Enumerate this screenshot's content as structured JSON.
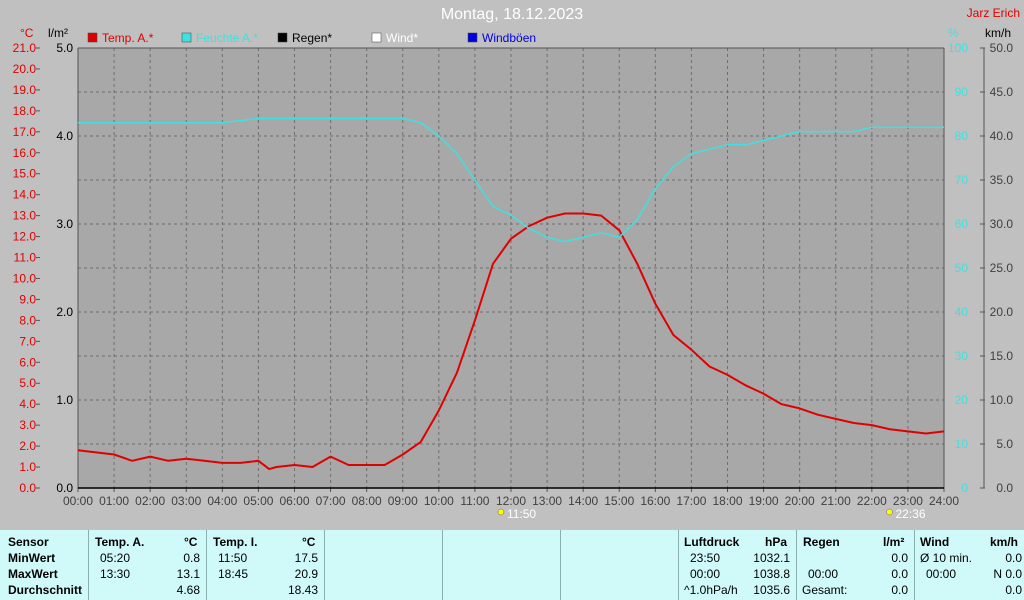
{
  "header": {
    "title": "Montag, 18.12.2023",
    "brand": "Jarz Erich"
  },
  "axes": {
    "left_temp_unit": "°C",
    "left_rain_unit": "l/m²",
    "right_hum_unit": "%",
    "right_wind_unit": "km/h"
  },
  "legend": [
    {
      "label": "Temp. A.*",
      "color": "#e00000"
    },
    {
      "label": "Feuchte A.*",
      "color": "#40e0e0"
    },
    {
      "label": "Regen*",
      "color": "#000000"
    },
    {
      "label": "Wind*",
      "color": "#ffffff"
    },
    {
      "label": "Windböen",
      "color": "#0000e0"
    }
  ],
  "markers": [
    {
      "label": "11:50",
      "hour": 11.833
    },
    {
      "label": "22:36",
      "hour": 22.6
    }
  ],
  "chart_data": {
    "type": "line",
    "title": "Montag, 18.12.2023",
    "x_ticks": [
      "00:00",
      "01:00",
      "02:00",
      "03:00",
      "04:00",
      "05:00",
      "06:00",
      "07:00",
      "08:00",
      "09:00",
      "10:00",
      "11:00",
      "12:00",
      "13:00",
      "14:00",
      "15:00",
      "16:00",
      "17:00",
      "18:00",
      "19:00",
      "20:00",
      "21:00",
      "22:00",
      "23:00",
      "24:00"
    ],
    "xlim": [
      0,
      24
    ],
    "y_temp_ticks": [
      "0.0",
      "1.0",
      "2.0",
      "3.0",
      "4.0",
      "5.0",
      "6.0",
      "7.0",
      "8.0",
      "9.0",
      "10.0",
      "11.0",
      "12.0",
      "13.0",
      "14.0",
      "15.0",
      "16.0",
      "17.0",
      "18.0",
      "19.0",
      "20.0",
      "21.0"
    ],
    "ylim_temp": [
      0,
      21
    ],
    "y_rain_ticks": [
      "0.0",
      "1.0",
      "2.0",
      "3.0",
      "4.0",
      "5.0"
    ],
    "ylim_rain": [
      0,
      5
    ],
    "y_hum_ticks": [
      "0",
      "10",
      "20",
      "30",
      "40",
      "50",
      "60",
      "70",
      "80",
      "90",
      "100"
    ],
    "ylim_hum": [
      0,
      100
    ],
    "y_wind_ticks": [
      "0.0",
      "5.0",
      "10.0",
      "15.0",
      "20.0",
      "25.0",
      "30.0",
      "35.0",
      "40.0",
      "45.0",
      "50.0"
    ],
    "ylim_wind": [
      0,
      50
    ],
    "grid": true,
    "series": [
      {
        "name": "Temp. A.*",
        "color": "#e00000",
        "axis": "temp",
        "x": [
          0,
          0.5,
          1,
          1.5,
          2,
          2.5,
          3,
          3.5,
          4,
          4.5,
          5,
          5.3,
          5.5,
          6,
          6.5,
          7,
          7.5,
          8,
          8.5,
          9,
          9.5,
          10,
          10.5,
          11,
          11.5,
          12,
          12.5,
          13,
          13.5,
          14,
          14.5,
          15,
          15.5,
          16,
          16.5,
          17,
          17.5,
          18,
          18.5,
          19,
          19.5,
          20,
          20.5,
          21,
          21.5,
          22,
          22.5,
          23,
          23.5,
          24
        ],
        "y": [
          1.8,
          1.7,
          1.6,
          1.3,
          1.5,
          1.3,
          1.4,
          1.3,
          1.2,
          1.2,
          1.3,
          0.9,
          1.0,
          1.1,
          1.0,
          1.5,
          1.1,
          1.1,
          1.1,
          1.6,
          2.2,
          3.7,
          5.5,
          8.0,
          10.7,
          11.9,
          12.5,
          12.9,
          13.1,
          13.1,
          13.0,
          12.3,
          10.7,
          8.8,
          7.3,
          6.6,
          5.8,
          5.4,
          4.9,
          4.5,
          4.0,
          3.8,
          3.5,
          3.3,
          3.1,
          3.0,
          2.8,
          2.7,
          2.6,
          2.7
        ]
      },
      {
        "name": "Feuchte A.*",
        "color": "#40e0e0",
        "axis": "hum",
        "x": [
          0,
          1,
          2,
          3,
          4,
          5,
          6,
          7,
          8,
          9,
          9.5,
          10,
          10.5,
          11,
          11.5,
          12,
          12.5,
          13,
          13.5,
          14,
          14.5,
          15,
          15.5,
          16,
          16.5,
          17,
          17.5,
          18,
          18.5,
          19,
          19.5,
          20,
          20.5,
          21,
          21.5,
          22,
          22.5,
          23,
          23.5,
          24
        ],
        "y": [
          83,
          83,
          83,
          83,
          83,
          84,
          84,
          84,
          84,
          84,
          83,
          80,
          76,
          70,
          64,
          62,
          59,
          57,
          56,
          57,
          58,
          57,
          61,
          68,
          73,
          76,
          77,
          78,
          78,
          79,
          80,
          81,
          81,
          81,
          81,
          82,
          82,
          82,
          82,
          82
        ]
      },
      {
        "name": "Regen*",
        "color": "#000000",
        "axis": "rain",
        "x": [
          0,
          24
        ],
        "y": [
          0,
          0
        ]
      }
    ]
  },
  "stats": {
    "sensor_header": "Sensor",
    "row_labels": [
      "MinWert",
      "MaxWert",
      "Durchschnitt"
    ],
    "temp_a": {
      "header": "Temp. A.",
      "unit": "°C",
      "rows": [
        [
          "05:20",
          "0.8"
        ],
        [
          "13:30",
          "13.1"
        ],
        [
          "",
          "4.68"
        ]
      ]
    },
    "temp_i": {
      "header": "Temp. I.",
      "unit": "°C",
      "rows": [
        [
          "11:50",
          "17.5"
        ],
        [
          "18:45",
          "20.9"
        ],
        [
          "",
          "18.43"
        ]
      ]
    },
    "pressure": {
      "header": "Luftdruck",
      "unit": "hPa",
      "rows": [
        [
          "23:50",
          "1032.1"
        ],
        [
          "00:00",
          "1038.8"
        ],
        [
          "^1.0hPa/h",
          "1035.6"
        ]
      ]
    },
    "rain": {
      "header": "Regen",
      "unit": "l/m²",
      "rows": [
        [
          "",
          "0.0"
        ],
        [
          "00:00",
          "0.0"
        ],
        [
          "Gesamt:",
          "0.0"
        ]
      ]
    },
    "wind": {
      "header": "Wind",
      "unit": "km/h",
      "rows": [
        [
          "Ø 10 min.",
          "0.0"
        ],
        [
          "00:00",
          "N 0.0"
        ],
        [
          "",
          "0.0"
        ]
      ]
    }
  }
}
